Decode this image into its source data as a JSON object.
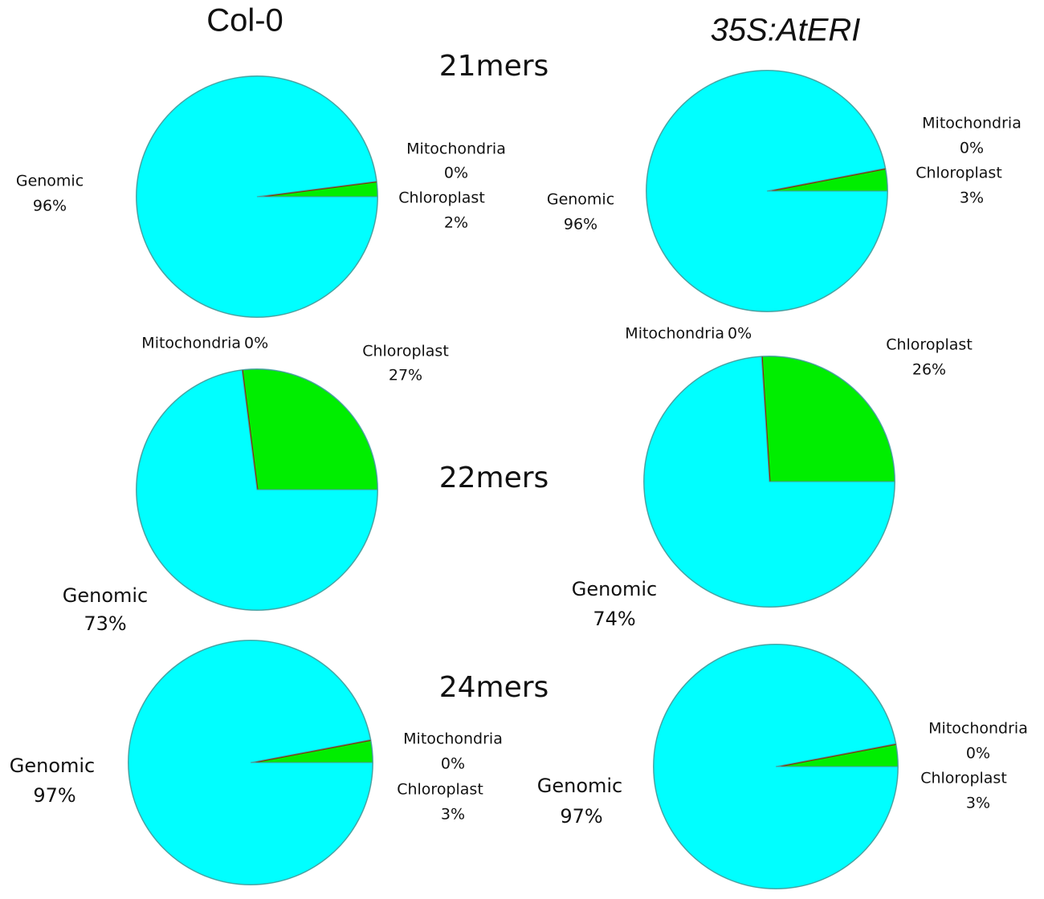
{
  "column_titles": [
    "Col-0",
    "35S:AtERI"
  ],
  "row_titles": [
    "21mers",
    "22mers",
    "24mers"
  ],
  "chart_data": [
    {
      "type": "pie",
      "categories": [
        "Chloroplast",
        "Mitochondria",
        "Genomic"
      ],
      "values": [
        2,
        0,
        96
      ],
      "value_labels": [
        "2%",
        "0%",
        "96%"
      ],
      "colors": [
        "#00ee00",
        "#8b2500",
        "#00ffff"
      ]
    },
    {
      "type": "pie",
      "categories": [
        "Chloroplast",
        "Mitochondria",
        "Genomic"
      ],
      "values": [
        3,
        0,
        96
      ],
      "value_labels": [
        "3%",
        "0%",
        "96%"
      ],
      "colors": [
        "#00ee00",
        "#8b2500",
        "#00ffff"
      ]
    },
    {
      "type": "pie",
      "categories": [
        "Chloroplast",
        "Mitochondria",
        "Genomic"
      ],
      "values": [
        27,
        0,
        73
      ],
      "value_labels": [
        "27%",
        "0%",
        "73%"
      ],
      "colors": [
        "#00ee00",
        "#8b2500",
        "#00ffff"
      ]
    },
    {
      "type": "pie",
      "categories": [
        "Chloroplast",
        "Mitochondria",
        "Genomic"
      ],
      "values": [
        26,
        0,
        74
      ],
      "value_labels": [
        "26%",
        "0%",
        "74%"
      ],
      "colors": [
        "#00ee00",
        "#8b2500",
        "#00ffff"
      ]
    },
    {
      "type": "pie",
      "categories": [
        "Chloroplast",
        "Mitochondria",
        "Genomic"
      ],
      "values": [
        3,
        0,
        97
      ],
      "value_labels": [
        "3%",
        "0%",
        "97%"
      ],
      "colors": [
        "#00ee00",
        "#8b2500",
        "#00ffff"
      ]
    },
    {
      "type": "pie",
      "categories": [
        "Chloroplast",
        "Mitochondria",
        "Genomic"
      ],
      "values": [
        3,
        0,
        97
      ],
      "value_labels": [
        "3%",
        "0%",
        "97%"
      ],
      "colors": [
        "#00ee00",
        "#8b2500",
        "#00ffff"
      ]
    }
  ]
}
